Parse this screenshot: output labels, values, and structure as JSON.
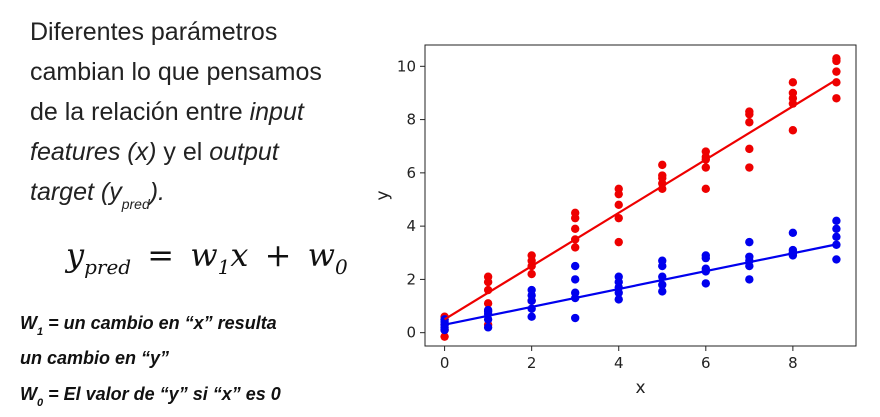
{
  "text": {
    "line1": "Diferentes parámetros",
    "line2": "cambian lo que pensamos",
    "line3_a": "de la relación entre ",
    "line3_b": "input",
    "line4_a": "features (x)",
    "line4_b": " y el ",
    "line4_c": "output",
    "line5_a": "target (y",
    "line5_sub": "pred",
    "line5_b": ")."
  },
  "formula": {
    "lhs": "y",
    "lhs_sub": "pred",
    "eq": "=",
    "w1": "w",
    "w1_sub": "1",
    "x": "x",
    "plus": "+",
    "w0": "w",
    "w0_sub": "0"
  },
  "notes": {
    "w1_letter": "W",
    "w1_sub": "1",
    "w1_text_a": " = un cambio en “x” resulta",
    "w1_text_b": "un cambio en “y”",
    "w0_letter": "W",
    "w0_sub": "0",
    "w0_text": " = El valor de “y” si “x” es 0"
  },
  "chart_data": {
    "type": "scatter",
    "xlabel": "x",
    "ylabel": "y",
    "xlim": [
      -0.45,
      9.45
    ],
    "ylim": [
      -0.5,
      10.8
    ],
    "xticks": [
      0,
      2,
      4,
      6,
      8
    ],
    "yticks": [
      0,
      2,
      4,
      6,
      8,
      10
    ],
    "grid": false,
    "series": [
      {
        "color": "#ee0000",
        "points": [
          [
            0,
            0.1
          ],
          [
            0,
            0.3
          ],
          [
            0,
            0.5
          ],
          [
            0,
            0.6
          ],
          [
            0,
            -0.15
          ],
          [
            1,
            1.1
          ],
          [
            1,
            1.6
          ],
          [
            1,
            1.9
          ],
          [
            1,
            2.1
          ],
          [
            1,
            0.3
          ],
          [
            2,
            1.2
          ],
          [
            2,
            2.2
          ],
          [
            2,
            2.5
          ],
          [
            2,
            2.7
          ],
          [
            2,
            2.9
          ],
          [
            3,
            3.2
          ],
          [
            3,
            3.5
          ],
          [
            3,
            3.9
          ],
          [
            3,
            4.3
          ],
          [
            3,
            4.5
          ],
          [
            4,
            3.4
          ],
          [
            4,
            4.3
          ],
          [
            4,
            4.8
          ],
          [
            4,
            5.2
          ],
          [
            4,
            5.4
          ],
          [
            5,
            5.4
          ],
          [
            5,
            5.6
          ],
          [
            5,
            5.8
          ],
          [
            5,
            5.9
          ],
          [
            5,
            6.3
          ],
          [
            6,
            5.4
          ],
          [
            6,
            6.2
          ],
          [
            6,
            6.5
          ],
          [
            6,
            6.6
          ],
          [
            6,
            6.8
          ],
          [
            7,
            6.2
          ],
          [
            7,
            6.9
          ],
          [
            7,
            7.9
          ],
          [
            7,
            8.2
          ],
          [
            7,
            8.3
          ],
          [
            8,
            7.6
          ],
          [
            8,
            8.6
          ],
          [
            8,
            8.8
          ],
          [
            8,
            9.0
          ],
          [
            8,
            9.4
          ],
          [
            9,
            8.8
          ],
          [
            9,
            9.4
          ],
          [
            9,
            9.8
          ],
          [
            9,
            10.2
          ],
          [
            9,
            10.3
          ]
        ],
        "fit": {
          "intercept": 0.5,
          "slope": 1.0
        }
      },
      {
        "color": "#0000ee",
        "points": [
          [
            0,
            0.1
          ],
          [
            0,
            0.2
          ],
          [
            0,
            0.3
          ],
          [
            0,
            0.4
          ],
          [
            0,
            0.5
          ],
          [
            1,
            0.2
          ],
          [
            1,
            0.5
          ],
          [
            1,
            0.7
          ],
          [
            1,
            0.8
          ],
          [
            1,
            0.85
          ],
          [
            2,
            0.6
          ],
          [
            2,
            0.9
          ],
          [
            2,
            1.2
          ],
          [
            2,
            1.4
          ],
          [
            2,
            1.6
          ],
          [
            3,
            0.55
          ],
          [
            3,
            1.3
          ],
          [
            3,
            1.5
          ],
          [
            3,
            2.0
          ],
          [
            3,
            2.5
          ],
          [
            4,
            1.25
          ],
          [
            4,
            1.5
          ],
          [
            4,
            1.7
          ],
          [
            4,
            1.9
          ],
          [
            4,
            2.1
          ],
          [
            5,
            1.55
          ],
          [
            5,
            1.8
          ],
          [
            5,
            2.1
          ],
          [
            5,
            2.5
          ],
          [
            5,
            2.7
          ],
          [
            6,
            1.85
          ],
          [
            6,
            2.3
          ],
          [
            6,
            2.4
          ],
          [
            6,
            2.8
          ],
          [
            6,
            2.9
          ],
          [
            7,
            2.0
          ],
          [
            7,
            2.5
          ],
          [
            7,
            2.7
          ],
          [
            7,
            2.85
          ],
          [
            7,
            3.4
          ],
          [
            8,
            2.9
          ],
          [
            8,
            3.0
          ],
          [
            8,
            3.1
          ],
          [
            8,
            3.75
          ],
          [
            8,
            3.0
          ],
          [
            9,
            2.75
          ],
          [
            9,
            3.3
          ],
          [
            9,
            3.6
          ],
          [
            9,
            3.9
          ],
          [
            9,
            4.2
          ]
        ],
        "fit": {
          "intercept": 0.3,
          "slope": 0.335
        }
      }
    ]
  }
}
